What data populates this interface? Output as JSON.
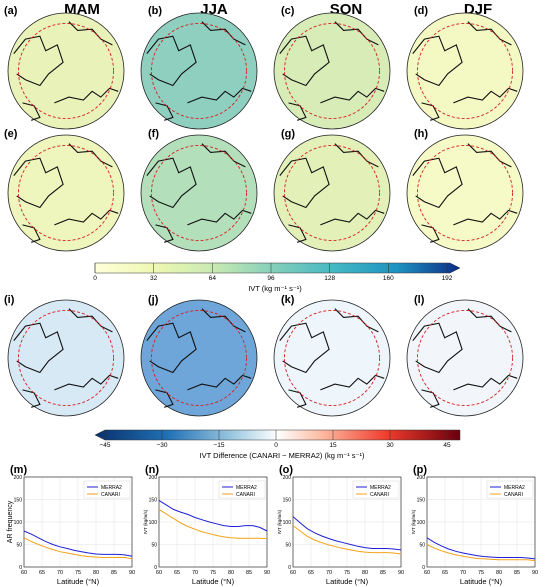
{
  "seasons": [
    "MAM",
    "JJA",
    "SON",
    "DJF"
  ],
  "panel_labels": {
    "row1": [
      "(a)",
      "(b)",
      "(c)",
      "(d)"
    ],
    "row2": [
      "(e)",
      "(f)",
      "(g)",
      "(h)"
    ],
    "row3": [
      "(i)",
      "(j)",
      "(k)",
      "(l)"
    ],
    "row4": [
      "(m)",
      "(n)",
      "(o)",
      "(p)"
    ]
  },
  "colors": {
    "merra2": "#1f1fd6",
    "canari": "#f4a21a",
    "polar_circle": "#d62020"
  },
  "map_fills": {
    "row1": [
      "#e9f3b9",
      "#8fcfc0",
      "#d7ecb6",
      "#f4f9c4"
    ],
    "row2": [
      "#eef6bd",
      "#b3dfbb",
      "#e3f1b8",
      "#f6fac6"
    ],
    "row3": [
      "#d8e9f6",
      "#6ea6d9",
      "#eef5fb",
      "#f2f6fa"
    ]
  },
  "colorbar_ivt": {
    "ticks": [
      "0",
      "32",
      "64",
      "96",
      "128",
      "160",
      "192"
    ],
    "label": "IVT   (kg m⁻¹ s⁻¹)"
  },
  "colorbar_diff": {
    "ticks": [
      "−45",
      "−30",
      "−15",
      "0",
      "15",
      "30",
      "45"
    ],
    "label": "IVT Difference  (CANARI − MERRA2)   (kg m⁻¹ s⁻¹)"
  },
  "chart_data": [
    {
      "type": "line",
      "panel": "(m)",
      "xlabel": "Latitude (°N)",
      "ylabel": "AR frequency",
      "xlim": [
        60,
        90
      ],
      "ylim": [
        0,
        200
      ],
      "xticks": [
        60,
        65,
        70,
        75,
        80,
        85,
        90
      ],
      "yticks": [
        0,
        50,
        100,
        150,
        200
      ],
      "legend_position": "top-right",
      "x": [
        60,
        62,
        64,
        66,
        68,
        70,
        72,
        74,
        76,
        78,
        80,
        82,
        84,
        86,
        88,
        90
      ],
      "series": [
        {
          "name": "MERRA2",
          "values": [
            80,
            73,
            65,
            57,
            50,
            45,
            41,
            37,
            34,
            31,
            29,
            28,
            28,
            28,
            27,
            24
          ]
        },
        {
          "name": "CANARI",
          "values": [
            65,
            57,
            50,
            44,
            39,
            34,
            31,
            28,
            25,
            23,
            22,
            21,
            21,
            21,
            21,
            18
          ]
        }
      ]
    },
    {
      "type": "line",
      "panel": "(n)",
      "xlabel": "Latitude (°N)",
      "ylabel": "IVT (kg/m/s)",
      "xlim": [
        60,
        90
      ],
      "ylim": [
        0,
        200
      ],
      "xticks": [
        60,
        65,
        70,
        75,
        80,
        85,
        90
      ],
      "yticks": [
        0,
        50,
        100,
        150,
        200
      ],
      "legend_position": "top-right",
      "x": [
        60,
        62,
        64,
        66,
        68,
        70,
        72,
        74,
        76,
        78,
        80,
        82,
        84,
        86,
        88,
        90
      ],
      "series": [
        {
          "name": "MERRA2",
          "values": [
            148,
            138,
            128,
            122,
            117,
            110,
            105,
            100,
            96,
            92,
            90,
            90,
            92,
            92,
            88,
            80
          ]
        },
        {
          "name": "CANARI",
          "values": [
            128,
            118,
            108,
            98,
            90,
            84,
            78,
            74,
            70,
            67,
            65,
            64,
            64,
            64,
            64,
            63
          ]
        }
      ]
    },
    {
      "type": "line",
      "panel": "(o)",
      "xlabel": "Latitude (°N)",
      "ylabel": "IVT (kg/m/s)",
      "xlim": [
        60,
        90
      ],
      "ylim": [
        0,
        200
      ],
      "xticks": [
        60,
        65,
        70,
        75,
        80,
        85,
        90
      ],
      "yticks": [
        0,
        50,
        100,
        150,
        200
      ],
      "legend_position": "top-right",
      "x": [
        60,
        62,
        64,
        66,
        68,
        70,
        72,
        74,
        76,
        78,
        80,
        82,
        84,
        86,
        88,
        90
      ],
      "series": [
        {
          "name": "MERRA2",
          "values": [
            112,
            98,
            85,
            76,
            69,
            63,
            58,
            54,
            50,
            46,
            43,
            41,
            41,
            41,
            40,
            38
          ]
        },
        {
          "name": "CANARI",
          "values": [
            92,
            80,
            68,
            60,
            54,
            49,
            45,
            41,
            38,
            35,
            33,
            32,
            32,
            32,
            31,
            29
          ]
        }
      ]
    },
    {
      "type": "line",
      "panel": "(p)",
      "xlabel": "Latitude (°N)",
      "ylabel": "IVT (kg/m/s)",
      "xlim": [
        60,
        90
      ],
      "ylim": [
        0,
        200
      ],
      "xticks": [
        60,
        65,
        70,
        75,
        80,
        85,
        90
      ],
      "yticks": [
        0,
        50,
        100,
        150,
        200
      ],
      "legend_position": "top-right",
      "x": [
        60,
        62,
        64,
        66,
        68,
        70,
        72,
        74,
        76,
        78,
        80,
        82,
        84,
        86,
        88,
        90
      ],
      "series": [
        {
          "name": "MERRA2",
          "values": [
            65,
            55,
            47,
            40,
            35,
            31,
            28,
            25,
            23,
            22,
            21,
            21,
            21,
            21,
            20,
            18
          ]
        },
        {
          "name": "CANARI",
          "values": [
            50,
            42,
            36,
            31,
            27,
            24,
            21,
            19,
            18,
            17,
            16,
            16,
            16,
            16,
            16,
            14
          ]
        }
      ]
    }
  ]
}
